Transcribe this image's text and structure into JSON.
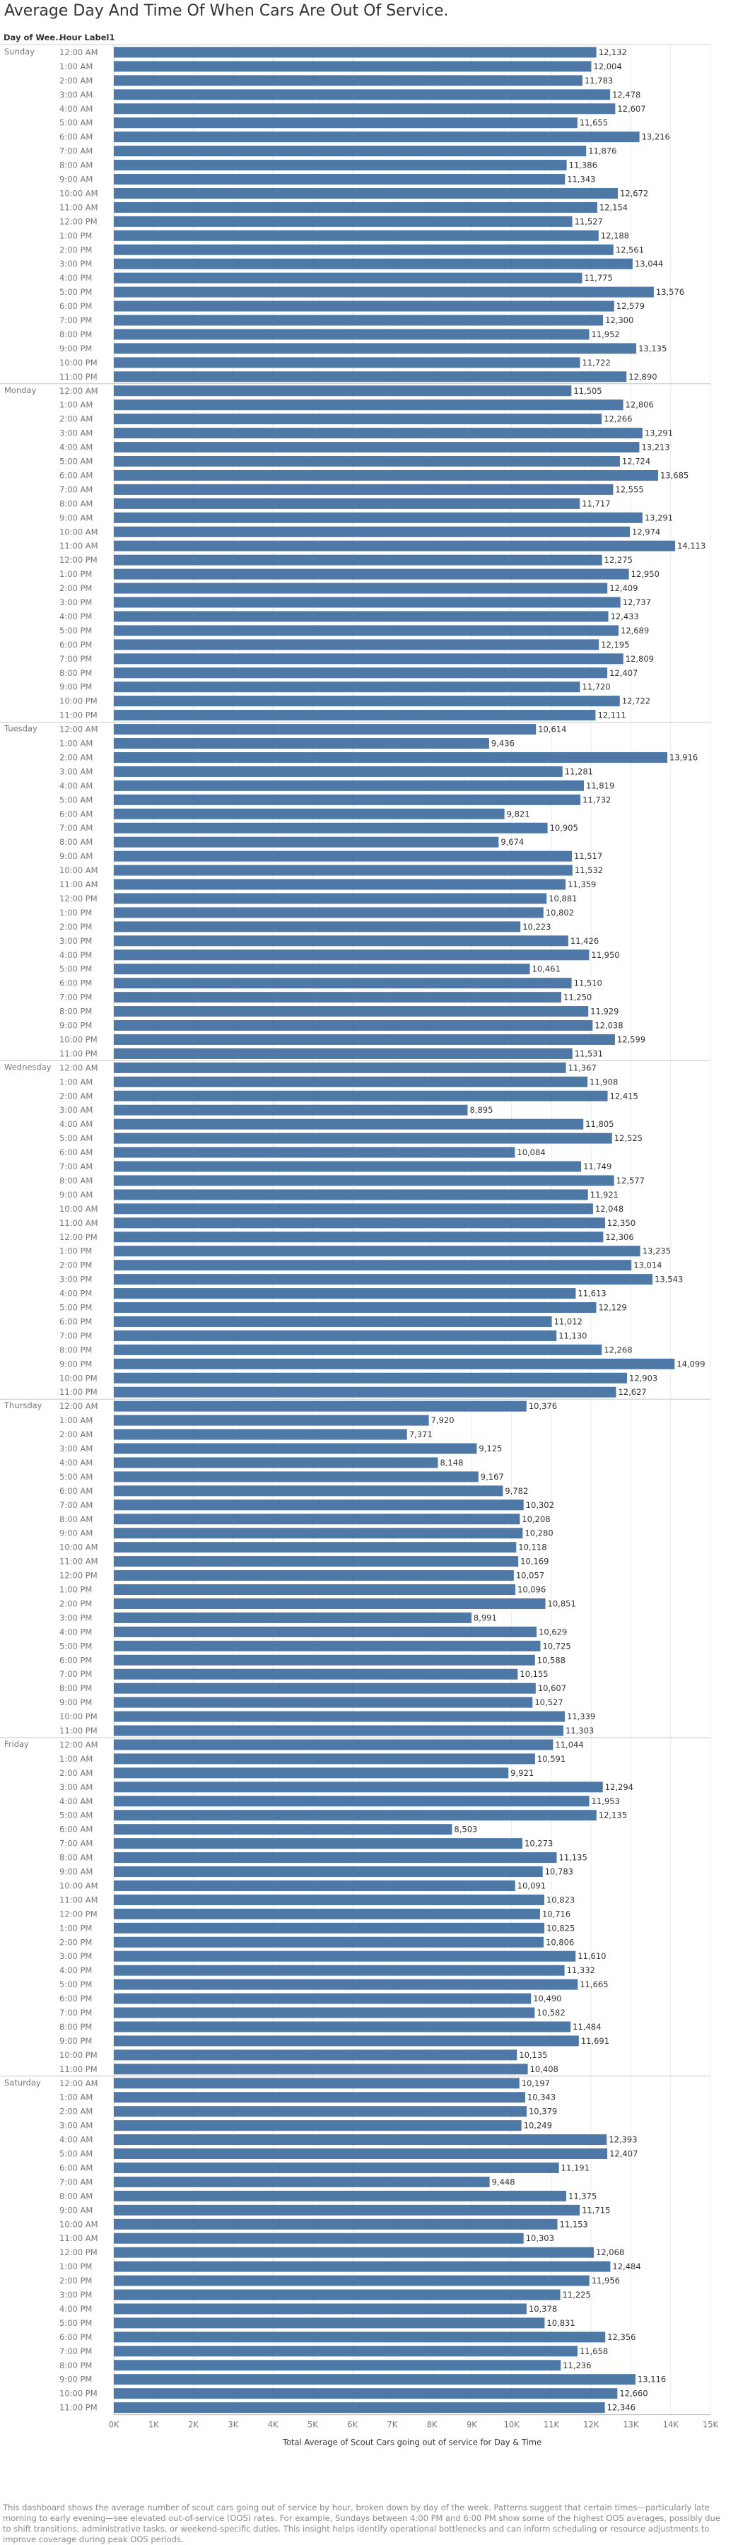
{
  "page_title": "Average Day And Time Of When Cars Are Out Of Service.",
  "description": "This dashboard shows the average number of scout cars going out of service by hour, broken down by day of the week. Patterns suggest that certain times—particularly late morning to early evening—see elevated out-of-service (OOS) rates. For example, Sundays between 4:00 PM and 6:00 PM show some of the highest OOS averages, possibly due to shift transitions, administrative tasks, or weekend-specific duties. This insight helps identify operational bottlenecks and can inform scheduling or resource adjustments to improve coverage during peak OOS periods.",
  "chart_data": {
    "type": "bar",
    "orientation": "horizontal",
    "title": "Average Day And Time Of When Cars Are Out Of Service.",
    "row_headers": [
      "Day of Wee..",
      "Hour Label1"
    ],
    "xlabel": "Total Average of Scout Cars going out of service for Day & Time",
    "xlim": [
      0,
      15000
    ],
    "x_tick_labels": [
      "0K",
      "1K",
      "2K",
      "3K",
      "4K",
      "5K",
      "6K",
      "7K",
      "8K",
      "9K",
      "10K",
      "11K",
      "12K",
      "13K",
      "14K",
      "15K"
    ],
    "hours": [
      "12:00 AM",
      "1:00 AM",
      "2:00 AM",
      "3:00 AM",
      "4:00 AM",
      "5:00 AM",
      "6:00 AM",
      "7:00 AM",
      "8:00 AM",
      "9:00 AM",
      "10:00 AM",
      "11:00 AM",
      "12:00 PM",
      "1:00 PM",
      "2:00 PM",
      "3:00 PM",
      "4:00 PM",
      "5:00 PM",
      "6:00 PM",
      "7:00 PM",
      "8:00 PM",
      "9:00 PM",
      "10:00 PM",
      "11:00 PM"
    ],
    "bar_color": "#4e79a7",
    "grid": true,
    "days": [
      {
        "name": "Sunday",
        "values": [
          12132,
          12004,
          11783,
          12478,
          12607,
          11655,
          13216,
          11876,
          11386,
          11343,
          12672,
          12154,
          11527,
          12188,
          12561,
          13044,
          11775,
          13576,
          12579,
          12300,
          11952,
          13135,
          11722,
          12890
        ]
      },
      {
        "name": "Monday",
        "values": [
          11505,
          12806,
          12266,
          13291,
          13213,
          12724,
          13685,
          12555,
          11717,
          13291,
          12974,
          14113,
          12275,
          12950,
          12409,
          12737,
          12433,
          12689,
          12195,
          12809,
          12407,
          11720,
          12722,
          12111
        ]
      },
      {
        "name": "Tuesday",
        "values": [
          10614,
          9436,
          13916,
          11281,
          11819,
          11732,
          9821,
          10905,
          9674,
          11517,
          11532,
          11359,
          10881,
          10802,
          10223,
          11426,
          11950,
          10461,
          11510,
          11250,
          11929,
          12038,
          12599,
          11531
        ]
      },
      {
        "name": "Wednesday",
        "values": [
          11367,
          11908,
          12415,
          8895,
          11805,
          12525,
          10084,
          11749,
          12577,
          11921,
          12048,
          12350,
          12306,
          13235,
          13014,
          13543,
          11613,
          12129,
          11012,
          11130,
          12268,
          14099,
          12903,
          12627
        ]
      },
      {
        "name": "Thursday",
        "values": [
          10376,
          7920,
          7371,
          9125,
          8148,
          9167,
          9782,
          10302,
          10208,
          10280,
          10118,
          10169,
          10057,
          10096,
          10851,
          8991,
          10629,
          10725,
          10588,
          10155,
          10607,
          10527,
          11339,
          11303
        ]
      },
      {
        "name": "Friday",
        "values": [
          11044,
          10591,
          9921,
          12294,
          11953,
          12135,
          8503,
          10273,
          11135,
          10783,
          10091,
          10823,
          10716,
          10825,
          10806,
          11610,
          11332,
          11665,
          10490,
          10582,
          11484,
          11691,
          10135,
          10408
        ]
      },
      {
        "name": "Saturday",
        "values": [
          10197,
          10343,
          10379,
          10249,
          12393,
          12407,
          11191,
          9448,
          11375,
          11715,
          11153,
          10303,
          12068,
          12484,
          11956,
          11225,
          10378,
          10831,
          12356,
          11658,
          11236,
          13116,
          12660,
          12346
        ]
      }
    ]
  }
}
